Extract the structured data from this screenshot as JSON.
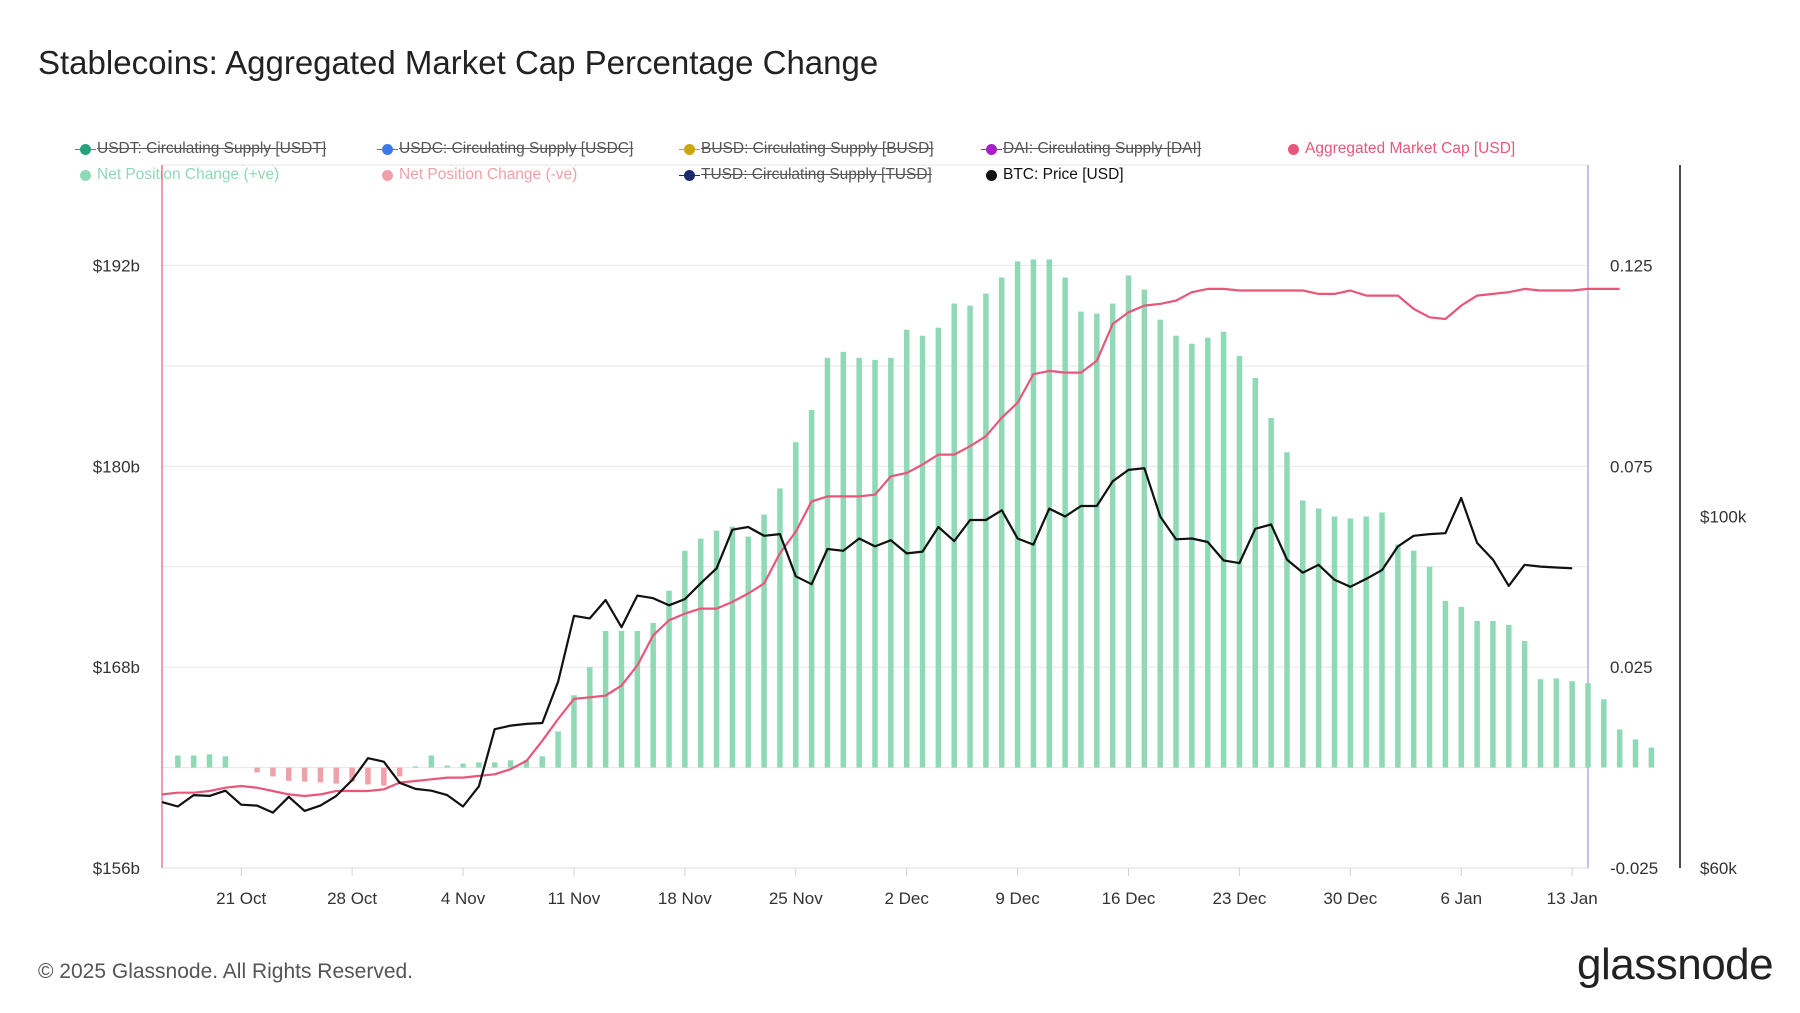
{
  "title": "Stablecoins: Aggregated Market Cap Percentage Change",
  "footer": "© 2025 Glassnode. All Rights Reserved.",
  "brand": "glassnode",
  "legend": [
    {
      "label": "USDT: Circulating Supply [USDT]",
      "color": "#26a17b",
      "struck": true
    },
    {
      "label": "USDC: Circulating Supply [USDC]",
      "color": "#3b7be8",
      "struck": true
    },
    {
      "label": "BUSD: Circulating Supply [BUSD]",
      "color": "#c7a80b",
      "struck": true
    },
    {
      "label": "DAI: Circulating Supply [DAI]",
      "color": "#a620c8",
      "struck": true
    },
    {
      "label": "Aggregated Market Cap [USD]",
      "color": "#e8577a",
      "struck": false
    },
    {
      "label": "Net Position Change (+ve)",
      "color": "#8fd9b6",
      "struck": false
    },
    {
      "label": "Net Position Change (-ve)",
      "color": "#f0a0a8",
      "struck": false
    },
    {
      "label": "TUSD: Circulating Supply [TUSD]",
      "color": "#1c2a6e",
      "struck": true
    },
    {
      "label": "BTC: Price [USD]",
      "color": "#111111",
      "struck": false
    }
  ],
  "chart_data": {
    "type": "line",
    "x_tick_labels": [
      "21 Oct",
      "28 Oct",
      "4 Nov",
      "11 Nov",
      "18 Nov",
      "25 Nov",
      "2 Dec",
      "9 Dec",
      "16 Dec",
      "23 Dec",
      "30 Dec",
      "6 Jan",
      "13 Jan"
    ],
    "x_range": [
      "2024-10-16",
      "2025-01-14"
    ],
    "y_left": {
      "ticks": [
        "$156b",
        "$168b",
        "$180b",
        "$192b"
      ],
      "range": [
        156,
        198
      ]
    },
    "y_right1": {
      "ticks": [
        "-0.025",
        "0.025",
        "0.075",
        "0.125"
      ],
      "range": [
        -0.025,
        0.15
      ]
    },
    "y_right2": {
      "ticks": [
        "$60k",
        "$100k"
      ],
      "range": [
        60000,
        140000
      ]
    },
    "grid": true,
    "legend_position": "top",
    "colors": {
      "mcap": "#e8577a",
      "btc": "#111111",
      "pos": "#8fd9b6",
      "neg": "#f0a0a8"
    },
    "series": [
      {
        "name": "Net Position Change (+ve)",
        "axis": "right1",
        "type": "bar",
        "x_start": "2024-10-17",
        "values": [
          0.003,
          0.003,
          0.0033,
          0.0028,
          null,
          null,
          null,
          null,
          null,
          null,
          null,
          null,
          null,
          null,
          null,
          0.0003,
          0.003,
          0.0005,
          0.001,
          0.0013,
          0.0013,
          0.0018,
          0.0018,
          0.0028,
          0.009,
          0.018,
          0.025,
          0.034,
          0.034,
          0.034,
          0.036,
          0.044,
          0.054,
          0.057,
          0.059,
          0.06,
          0.0575,
          0.063,
          0.0695,
          0.081,
          0.089,
          0.102,
          0.1035,
          0.102,
          0.1015,
          0.102,
          0.109,
          0.1075,
          0.1095,
          0.1155,
          0.115,
          0.118,
          0.122,
          0.126,
          0.1265,
          0.1265,
          0.122,
          0.1135,
          0.113,
          0.1155,
          0.1225,
          0.119,
          0.1115,
          0.1075,
          0.1055,
          0.107,
          0.1085,
          0.1025,
          0.097,
          0.087,
          0.0785,
          0.0665,
          0.0645,
          0.0625,
          0.062,
          0.0625,
          0.0635,
          0.0555,
          0.054,
          0.05,
          0.0415,
          0.04,
          0.0365,
          0.0365,
          0.0355,
          0.0315,
          0.022,
          0.0222,
          0.0215,
          0.021,
          0.017,
          0.0095,
          0.007,
          0.005
        ]
      },
      {
        "name": "Net Position Change (-ve)",
        "axis": "right1",
        "type": "bar",
        "x_start": "2024-10-22",
        "values": [
          -0.0012,
          -0.0022,
          -0.0033,
          -0.0035,
          -0.0037,
          -0.004,
          -0.0035,
          -0.0042,
          -0.0045,
          -0.0022
        ]
      },
      {
        "name": "Aggregated Market Cap [USD]",
        "axis": "left",
        "unit": "billion USD",
        "x_start": "2024-10-16",
        "values": [
          160.4,
          160.5,
          160.5,
          160.6,
          160.8,
          160.9,
          160.8,
          160.6,
          160.4,
          160.3,
          160.4,
          160.6,
          160.6,
          160.6,
          160.7,
          161.1,
          161.2,
          161.3,
          161.4,
          161.4,
          161.5,
          161.6,
          161.9,
          162.4,
          163.6,
          164.9,
          166.1,
          166.2,
          166.3,
          166.9,
          168.1,
          169.9,
          170.8,
          171.2,
          171.5,
          171.5,
          171.9,
          172.4,
          173.0,
          174.8,
          176.1,
          177.9,
          178.2,
          178.2,
          178.2,
          178.3,
          179.4,
          179.6,
          180.1,
          180.7,
          180.7,
          181.2,
          181.8,
          182.9,
          183.8,
          185.5,
          185.7,
          185.6,
          185.6,
          186.3,
          188.5,
          189.2,
          189.6,
          189.7,
          189.9,
          190.4,
          190.6,
          190.6,
          190.5,
          190.5,
          190.5,
          190.5,
          190.5,
          190.3,
          190.3,
          190.5,
          190.2,
          190.2,
          190.2,
          189.4,
          188.9,
          188.8,
          189.6,
          190.2,
          190.3,
          190.4,
          190.6,
          190.5,
          190.5,
          190.5,
          190.6,
          190.6,
          190.6
        ]
      },
      {
        "name": "BTC: Price [USD]",
        "axis": "right2",
        "x_start": "2024-10-16",
        "values": [
          67500,
          67000,
          68300,
          68200,
          68800,
          67200,
          67100,
          66300,
          68100,
          66500,
          67100,
          68200,
          70000,
          72500,
          72100,
          69700,
          69000,
          68800,
          68300,
          67000,
          69300,
          75800,
          76200,
          76400,
          76500,
          81200,
          88700,
          88400,
          90500,
          87400,
          91000,
          90700,
          89900,
          90600,
          92400,
          94100,
          98500,
          98800,
          97800,
          98000,
          93200,
          92300,
          96300,
          96100,
          97500,
          96600,
          97300,
          95800,
          96000,
          98800,
          97200,
          99600,
          99600,
          100700,
          97500,
          96800,
          100900,
          100000,
          101200,
          101200,
          104000,
          105300,
          105500,
          100000,
          97400,
          97500,
          97100,
          95000,
          94700,
          98600,
          99100,
          95100,
          93600,
          94500,
          92800,
          92000,
          92900,
          93900,
          96600,
          97800,
          98000,
          98100,
          102100,
          97000,
          95100,
          92100,
          94500,
          94300,
          94200,
          94100
        ]
      }
    ]
  }
}
